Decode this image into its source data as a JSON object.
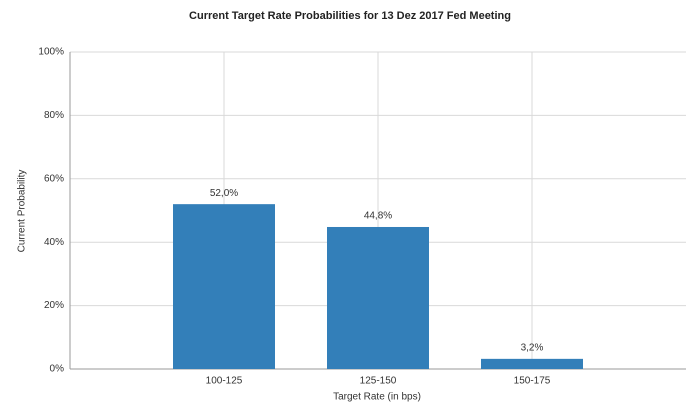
{
  "chart_data": {
    "type": "bar",
    "title": "Current Target Rate Probabilities for 13 Dez 2017 Fed Meeting",
    "x_label": "Target Rate (in bps)",
    "y_label": "Current Probability",
    "categories": [
      "100-125",
      "125-150",
      "150-175"
    ],
    "values": [
      52.0,
      44.8,
      3.2
    ],
    "value_labels": [
      "52,0%",
      "44,8%",
      "3,2%"
    ],
    "color": "#337fb9",
    "ylim": [
      0,
      100
    ],
    "yticks": [
      {
        "value": 0,
        "label": "0%"
      },
      {
        "value": 20,
        "label": "20%"
      },
      {
        "value": 40,
        "label": "40%"
      },
      {
        "value": 60,
        "label": "60%"
      },
      {
        "value": 80,
        "label": "80%"
      },
      {
        "value": 100,
        "label": "100%"
      }
    ],
    "grid": true
  }
}
